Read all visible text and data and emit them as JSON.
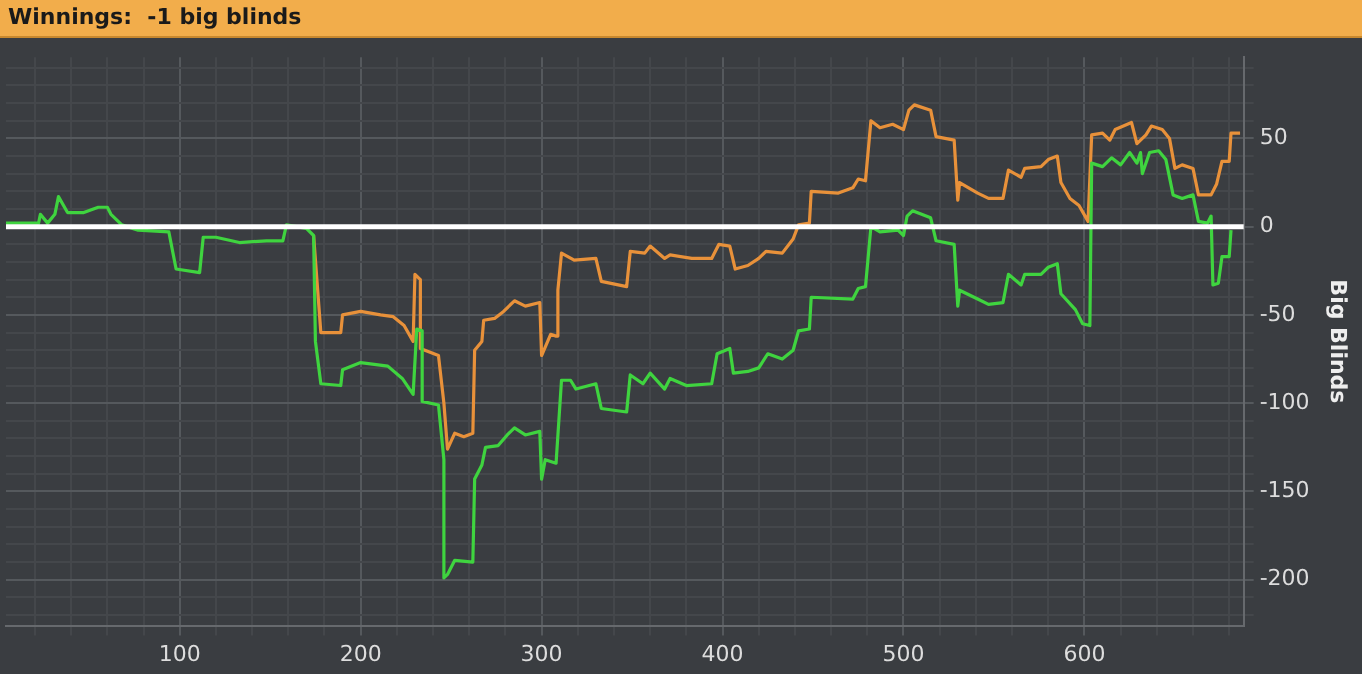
{
  "chart_data": {
    "type": "line",
    "title": "Winnings:  -1 big blinds",
    "ylabel": "Big Blinds",
    "xlim": [
      4,
      688
    ],
    "ylim": [
      -226,
      96
    ],
    "xticks": [
      {
        "value": 20,
        "label": null
      },
      {
        "value": 40,
        "label": null
      },
      {
        "value": 60,
        "label": null
      },
      {
        "value": 80,
        "label": null
      },
      100,
      {
        "value": 120,
        "label": null
      },
      {
        "value": 140,
        "label": null
      },
      {
        "value": 160,
        "label": null
      },
      {
        "value": 180,
        "label": null
      },
      200,
      {
        "value": 220,
        "label": null
      },
      {
        "value": 240,
        "label": null
      },
      {
        "value": 260,
        "label": null
      },
      {
        "value": 280,
        "label": null
      },
      300,
      {
        "value": 320,
        "label": null
      },
      {
        "value": 340,
        "label": null
      },
      {
        "value": 360,
        "label": null
      },
      {
        "value": 380,
        "label": null
      },
      400,
      {
        "value": 420,
        "label": null
      },
      {
        "value": 440,
        "label": null
      },
      {
        "value": 460,
        "label": null
      },
      {
        "value": 480,
        "label": null
      },
      500,
      {
        "value": 520,
        "label": null
      },
      {
        "value": 540,
        "label": null
      },
      {
        "value": 560,
        "label": null
      },
      {
        "value": 580,
        "label": null
      },
      600,
      {
        "value": 620,
        "label": null
      },
      {
        "value": 640,
        "label": null
      },
      {
        "value": 660,
        "label": null
      },
      {
        "value": 680,
        "label": null
      }
    ],
    "yticks": [
      {
        "value": -220,
        "label": null
      },
      {
        "value": -210,
        "label": null
      },
      -200,
      {
        "value": -190,
        "label": null
      },
      {
        "value": -180,
        "label": null
      },
      {
        "value": -170,
        "label": null
      },
      {
        "value": -160,
        "label": null
      },
      -150,
      {
        "value": -140,
        "label": null
      },
      {
        "value": -130,
        "label": null
      },
      {
        "value": -120,
        "label": null
      },
      {
        "value": -110,
        "label": null
      },
      -100,
      {
        "value": -90,
        "label": null
      },
      {
        "value": -80,
        "label": null
      },
      {
        "value": -70,
        "label": null
      },
      {
        "value": -60,
        "label": null
      },
      -50,
      {
        "value": -40,
        "label": null
      },
      {
        "value": -30,
        "label": null
      },
      {
        "value": -20,
        "label": null
      },
      {
        "value": -10,
        "label": null
      },
      0,
      {
        "value": 10,
        "label": null
      },
      {
        "value": 20,
        "label": null
      },
      {
        "value": 30,
        "label": null
      },
      {
        "value": 40,
        "label": null
      },
      50,
      {
        "value": 60,
        "label": null
      },
      {
        "value": 70,
        "label": null
      },
      {
        "value": 80,
        "label": null
      },
      {
        "value": 90,
        "label": null
      }
    ],
    "grid": true,
    "legend": false,
    "marker": "none",
    "line_style": "solid",
    "ref_lines": [
      {
        "axis": "y",
        "value": 0,
        "color": "#ffffff"
      }
    ],
    "series": [
      {
        "color": "#3fd43f",
        "x": [
          4,
          22,
          23,
          27,
          31,
          33,
          38,
          47,
          55,
          60,
          62,
          68,
          77,
          94,
          98,
          111,
          113,
          120,
          133,
          148,
          157,
          159,
          170,
          174,
          175,
          178,
          189,
          190,
          200,
          215,
          223,
          229,
          231,
          234,
          234,
          243,
          246,
          246,
          248,
          252,
          262,
          263,
          267,
          269,
          276,
          281,
          285,
          291,
          299,
          300,
          302,
          308,
          311,
          316,
          319,
          330,
          333,
          347,
          349,
          356,
          360,
          368,
          371,
          380,
          394,
          397,
          404,
          406,
          414,
          420,
          425,
          433,
          439,
          442,
          448,
          449,
          472,
          475,
          479,
          482,
          487,
          497,
          500,
          502,
          505,
          515,
          518,
          528,
          530,
          531,
          541,
          547,
          555,
          558,
          565,
          567,
          576,
          580,
          585,
          587,
          595,
          599,
          603,
          604,
          610,
          615,
          620,
          625,
          629,
          631,
          632,
          636,
          641,
          645,
          649,
          654,
          660,
          663,
          668,
          670,
          671,
          674,
          676,
          680,
          681
        ],
        "values": [
          2,
          2,
          7,
          2,
          7,
          17,
          8,
          8,
          11,
          11,
          7,
          1,
          -2,
          -3,
          -24,
          -26,
          -6,
          -6,
          -9,
          -8,
          -8,
          1,
          -1,
          -5,
          -65,
          -89,
          -90,
          -81,
          -77,
          -79,
          -86,
          -95,
          -58,
          -59,
          -99,
          -101,
          -132,
          -199,
          -197,
          -189,
          -190,
          -143,
          -135,
          -125,
          -124,
          -118,
          -114,
          -118,
          -116,
          -143,
          -132,
          -134,
          -87,
          -87,
          -92,
          -89,
          -103,
          -105,
          -84,
          -89,
          -83,
          -92,
          -86,
          -90,
          -89,
          -72,
          -69,
          -83,
          -82,
          -80,
          -72,
          -75,
          -70,
          -59,
          -58,
          -40,
          -41,
          -35,
          -34,
          0,
          -3,
          -2,
          -5,
          6,
          9,
          5,
          -8,
          -10,
          -45,
          -36,
          -41,
          -44,
          -43,
          -27,
          -33,
          -27,
          -27,
          -23,
          -21,
          -38,
          -47,
          -55,
          -56,
          36,
          34,
          39,
          35,
          42,
          36,
          42,
          30,
          42,
          43,
          38,
          18,
          16,
          18,
          3,
          2,
          6,
          -33,
          -32,
          -17,
          -17,
          -2
        ]
      },
      {
        "color": "#e8913a",
        "x": [
          174,
          178,
          184,
          189,
          190,
          200,
          211,
          218,
          224,
          229,
          230,
          233,
          233,
          243,
          246,
          248,
          252,
          257,
          262,
          263,
          267,
          268,
          274,
          279,
          285,
          291,
          299,
          300,
          305,
          308,
          309,
          311,
          318,
          330,
          333,
          347,
          349,
          357,
          360,
          368,
          371,
          383,
          394,
          398,
          404,
          407,
          414,
          420,
          424,
          433,
          439,
          442,
          448,
          449,
          464,
          472,
          475,
          479,
          482,
          487,
          494,
          500,
          503,
          506,
          515,
          518,
          528,
          530,
          531,
          541,
          547,
          555,
          558,
          565,
          567,
          576,
          580,
          585,
          587,
          592,
          597,
          602,
          604,
          610,
          614,
          617,
          626,
          629,
          634,
          637,
          643,
          647,
          650,
          654,
          660,
          663,
          670,
          673,
          676,
          680,
          681,
          686
        ],
        "values": [
          -5,
          -60,
          -60,
          -60,
          -50,
          -48,
          -50,
          -51,
          -56,
          -65,
          -27,
          -30,
          -69,
          -73,
          -100,
          -126,
          -117,
          -119,
          -117,
          -70,
          -65,
          -53,
          -52,
          -48,
          -42,
          -45,
          -43,
          -73,
          -61,
          -62,
          -36,
          -15,
          -19,
          -18,
          -31,
          -34,
          -14,
          -15,
          -11,
          -18,
          -16,
          -18,
          -18,
          -10,
          -11,
          -24,
          -22,
          -18,
          -14,
          -15,
          -7,
          1,
          2,
          20,
          19,
          22,
          27,
          26,
          60,
          56,
          58,
          55,
          66,
          69,
          66,
          51,
          49,
          15,
          25,
          19,
          16,
          16,
          32,
          28,
          33,
          34,
          38,
          40,
          25,
          16,
          12,
          3,
          52,
          53,
          49,
          55,
          59,
          47,
          52,
          57,
          55,
          50,
          33,
          35,
          33,
          18,
          18,
          24,
          37,
          37,
          53,
          53
        ]
      }
    ]
  }
}
